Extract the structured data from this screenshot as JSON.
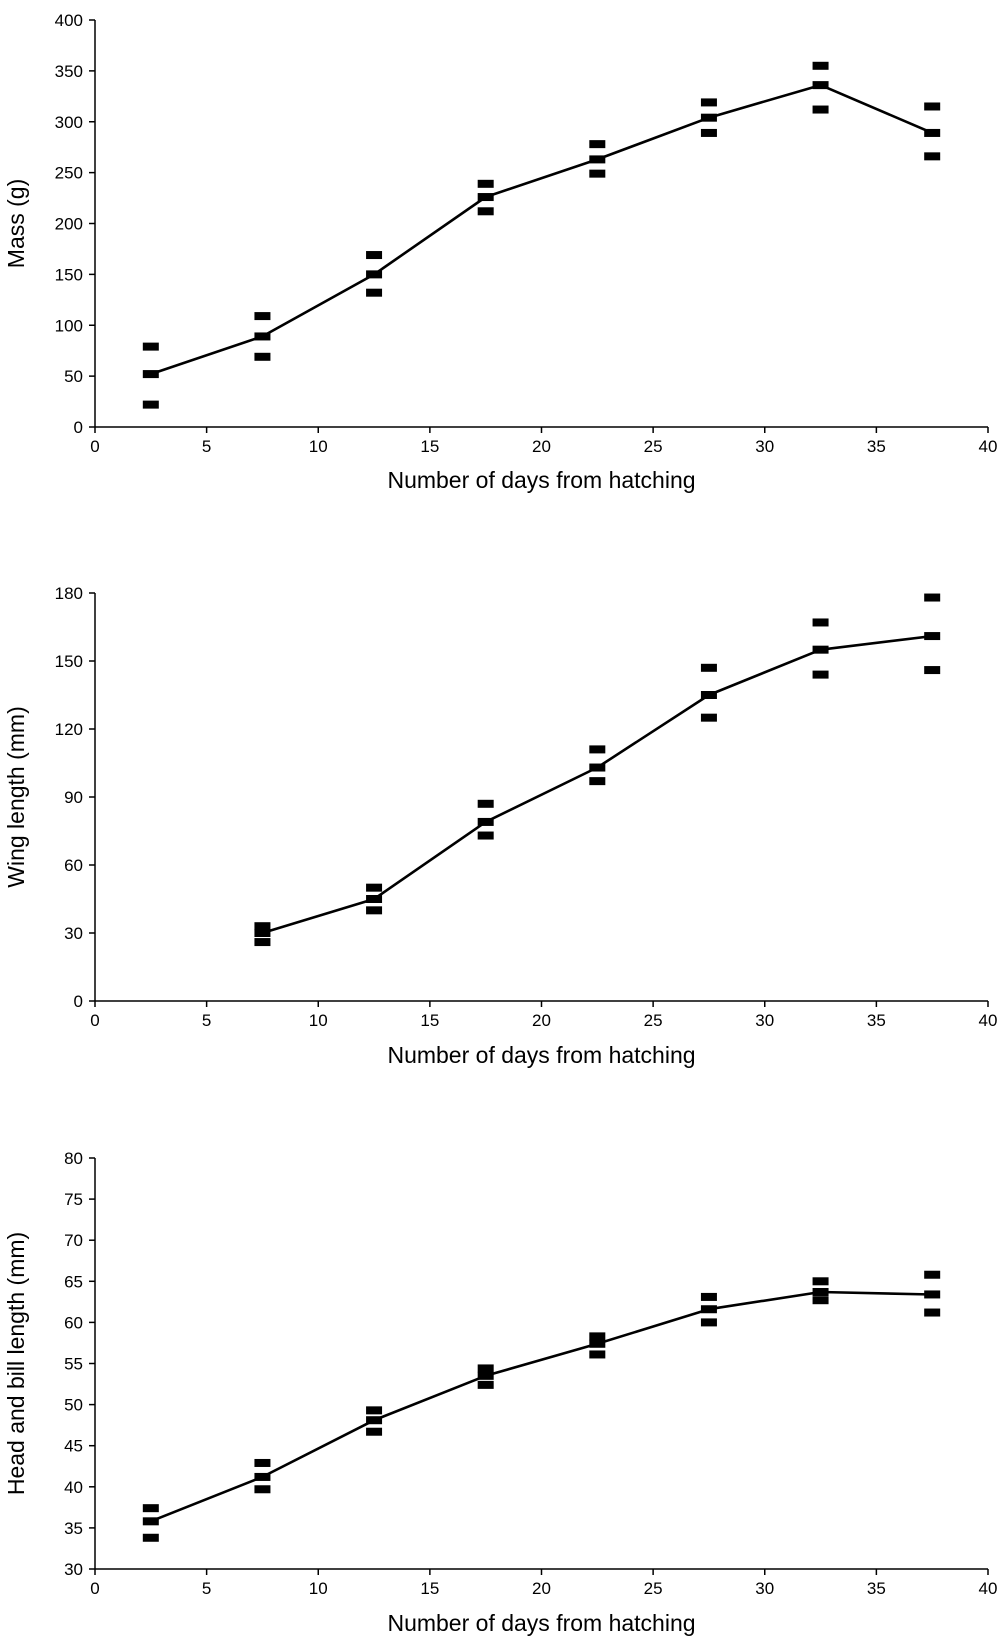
{
  "chart_data": [
    {
      "type": "line",
      "title": "",
      "xlabel": "Number of  days from hatching",
      "ylabel": "Mass (g)",
      "xlim": [
        0,
        40
      ],
      "ylim": [
        0,
        400
      ],
      "xticks": [
        0,
        5,
        10,
        15,
        20,
        25,
        30,
        35,
        40
      ],
      "yticks": [
        0,
        50,
        100,
        150,
        200,
        250,
        300,
        350,
        400
      ],
      "grid": false,
      "legend": "none",
      "series": [
        {
          "x": [
            2.5,
            7.5,
            12.5,
            17.5,
            22.5,
            27.5,
            32.5,
            37.5
          ],
          "mean": [
            52,
            89,
            150,
            226,
            263,
            304,
            336,
            289
          ],
          "upper": [
            79,
            109,
            169,
            239,
            278,
            319,
            355,
            315
          ],
          "lower": [
            22,
            69,
            132,
            212,
            249,
            289,
            312,
            266
          ]
        }
      ]
    },
    {
      "type": "line",
      "title": "",
      "xlabel": "Number of  days from hatching",
      "ylabel": "Wing length (mm)",
      "xlim": [
        0,
        40
      ],
      "ylim": [
        0,
        180
      ],
      "xticks": [
        0,
        5,
        10,
        15,
        20,
        25,
        30,
        35,
        40
      ],
      "yticks": [
        0,
        30,
        60,
        90,
        120,
        150,
        180
      ],
      "grid": false,
      "legend": "none",
      "series": [
        {
          "x": [
            7.5,
            12.5,
            17.5,
            22.5,
            27.5,
            32.5,
            37.5
          ],
          "mean": [
            30,
            45,
            79,
            103,
            135,
            155,
            161
          ],
          "upper": [
            33,
            50,
            87,
            111,
            147,
            167,
            178
          ],
          "lower": [
            26,
            40,
            73,
            97,
            125,
            144,
            146
          ]
        }
      ]
    },
    {
      "type": "line",
      "title": "",
      "xlabel": "Number of  days from hatching",
      "ylabel": "Head and bill length (mm)",
      "xlim": [
        0,
        40
      ],
      "ylim": [
        30,
        80
      ],
      "xticks": [
        0,
        5,
        10,
        15,
        20,
        25,
        30,
        35,
        40
      ],
      "yticks": [
        30,
        35,
        40,
        45,
        50,
        55,
        60,
        65,
        70,
        75,
        80
      ],
      "grid": false,
      "legend": "none",
      "series": [
        {
          "x": [
            2.5,
            7.5,
            12.5,
            17.5,
            22.5,
            27.5,
            32.5,
            37.5
          ],
          "mean": [
            35.8,
            41.2,
            48.1,
            53.5,
            57.4,
            61.6,
            63.7,
            63.4
          ],
          "upper": [
            37.4,
            42.9,
            49.3,
            54.4,
            58.3,
            63.1,
            65.0,
            65.8
          ],
          "lower": [
            33.8,
            39.7,
            46.7,
            52.4,
            56.1,
            60.0,
            62.7,
            61.2
          ]
        }
      ]
    }
  ],
  "colors": {
    "ink": "#000000",
    "background": "#ffffff"
  }
}
